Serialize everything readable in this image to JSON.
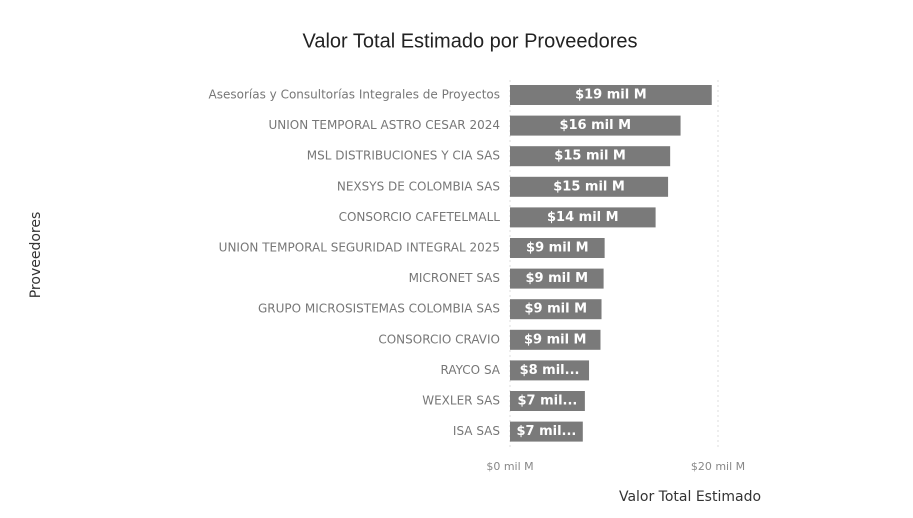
{
  "chart_data": {
    "type": "bar",
    "orientation": "horizontal",
    "title": "Valor Total Estimado por Proveedores",
    "x_label": "Valor Total Estimado",
    "y_label": "Proveedores",
    "categories": [
      "Asesorías y Consultorías Integrales de Proyectos",
      "UNION TEMPORAL ASTRO CESAR 2024",
      "MSL DISTRIBUCIONES Y CIA SAS",
      "NEXSYS DE COLOMBIA SAS",
      "CONSORCIO CAFETELMALL",
      "UNION TEMPORAL SEGURIDAD INTEGRAL 2025",
      "MICRONET SAS",
      "GRUPO MICROSISTEMAS COLOMBIA SAS",
      "CONSORCIO CRAVIO",
      "RAYCO SA",
      "WEXLER SAS",
      "ISA SAS"
    ],
    "values": [
      19.4,
      16.4,
      15.4,
      15.2,
      14.0,
      9.1,
      9.0,
      8.8,
      8.7,
      7.6,
      7.2,
      7.0
    ],
    "value_labels": [
      "$19 mil M",
      "$16 mil M",
      "$15 mil M",
      "$15 mil M",
      "$14 mil M",
      "$9 mil M",
      "$9 mil M",
      "$9 mil M",
      "$9 mil M",
      "$8 mil...",
      "$7 mil...",
      "$7 mil..."
    ],
    "color": "#7a7a7a",
    "xlim": [
      0,
      35
    ],
    "xticks": [
      {
        "value": 0,
        "label": "$0 mil M"
      },
      {
        "value": 20,
        "label": "$20 mil M"
      }
    ],
    "grid": true
  }
}
